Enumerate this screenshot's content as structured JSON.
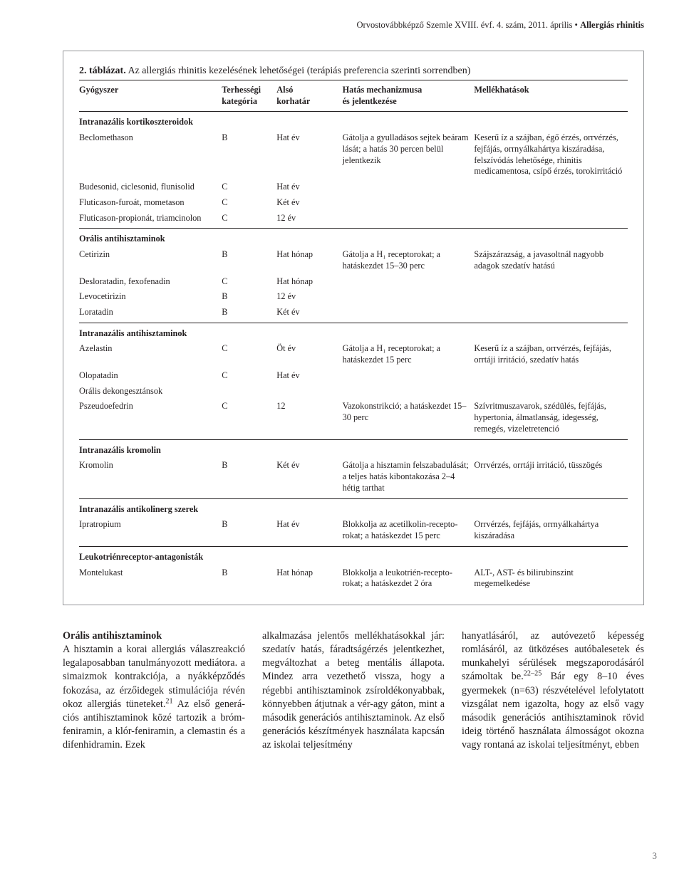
{
  "running_head": {
    "journal": "Orvostovábbképző Szemle XVIII. évf. 4. szám, 2011. április • ",
    "section": "Allergiás rhinitis"
  },
  "table": {
    "caption_label": "2. táblázat.",
    "caption_text": " Az allergiás rhinitis kezelésének lehetőségei (terápiás preferencia szerinti sorrendben)",
    "headers": {
      "drug": "Gyógyszer",
      "cat1": "Terhességi",
      "cat2": "kategória",
      "age1": "Alsó",
      "age2": "korhatár",
      "mech1": "Hatás mechanizmusa",
      "mech2": "és jelentkezése",
      "side": "Mellékhatások"
    },
    "groups": [
      {
        "title": "Intranazális kortikoszteroidok",
        "rows": [
          {
            "drug": "Beclomethason",
            "cat": "B",
            "age": "Hat év",
            "mech": "Gátolja a gyulladásos sejtek beáram lását; a hatás 30 per­cen belül jelentkezik",
            "side": "Keserű íz a szájban, égő érzés, orrvérzés, fejfájás, orrnyálkahártya kiszáradása, felszí­vódás lehetősége, rhinitis medicamentosa, csípő érzés, torokirritáció"
          },
          {
            "drug": "Budesonid, ciclesonid, flunisolid",
            "cat": "C",
            "age": "Hat év",
            "mech": "",
            "side": ""
          },
          {
            "drug": "Fluticason-furoát, mometason",
            "cat": "C",
            "age": "Két év",
            "mech": "",
            "side": ""
          },
          {
            "drug": "Fluticason-propionát, triamcinolon",
            "cat": "C",
            "age": "12 év",
            "mech": "",
            "side": ""
          }
        ]
      },
      {
        "title": "Orális antihisztaminok",
        "rows": [
          {
            "drug": "Cetirizin",
            "cat": "B",
            "age": "Hat hónap",
            "mech": "Gátolja a H₁ receptorokat; a hatáskezdet 15–30 perc",
            "side": "Szájszárazság, a javasoltnál nagyobb adagok szedatív hatású"
          },
          {
            "drug": "Desloratadin, fexofenadin",
            "cat": "C",
            "age": "Hat hónap",
            "mech": "",
            "side": ""
          },
          {
            "drug": "Levocetirizin",
            "cat": "B",
            "age": "12 év",
            "mech": "",
            "side": ""
          },
          {
            "drug": "Loratadin",
            "cat": "B",
            "age": "Két év",
            "mech": "",
            "side": ""
          }
        ]
      },
      {
        "title": "Intranazális antihisztaminok",
        "rows": [
          {
            "drug": "Azelastin",
            "cat": "C",
            "age": "Öt év",
            "mech": "Gátolja a H₁ receptorokat; a hatáskezdet 15 perc",
            "side": "Keserű íz a szájban, orrvérzés, fejfájás, orrtáji irritáció, szedatív hatás"
          },
          {
            "drug": "Olopatadin",
            "cat": "C",
            "age": "Hat év",
            "mech": "",
            "side": ""
          },
          {
            "drug": "Orális dekongesztánsok",
            "cat": "",
            "age": "",
            "mech": "",
            "side": ""
          },
          {
            "drug": "Pszeudoefedrin",
            "cat": "C",
            "age": "12",
            "mech": "Vazokonstrikció; a hatáskezdet 15–30 perc",
            "side": "Szívritmuszavarok, szédülés, fejfájás, hyper­tonia, álmatlanság, idegesség, remegés, vizeletretenció"
          }
        ]
      },
      {
        "title": "Intranazális kromolin",
        "rows": [
          {
            "drug": "Kromolin",
            "cat": "B",
            "age": "Két év",
            "mech": "Gátolja a hisztamin felszabadu­lását; a teljes hatás kibonta­kozása 2–4 hétig tarthat",
            "side": "Orrvérzés, orrtáji irritáció, tüsszögés"
          }
        ]
      },
      {
        "title": "Intranazális antikolinerg szerek",
        "rows": [
          {
            "drug": "Ipratropium",
            "cat": "B",
            "age": "Hat év",
            "mech": "Blokkolja az acetilkolin-recepto­rokat; a hatáskezdet 15 perc",
            "side": "Orrvérzés, fejfájás, orrnyálkahártya kiszáradása"
          }
        ]
      },
      {
        "title": "Leukotriénreceptor-antagonisták",
        "rows": [
          {
            "drug": "Montelukast",
            "cat": "B",
            "age": "Hat hónap",
            "mech": "Blokkolja a leukotrién-recepto­rokat; a hatáskezdet 2 óra",
            "side": "ALT-, AST- és bilirubinszint megemelkedése"
          }
        ]
      }
    ]
  },
  "body": {
    "subhead": "Orális antihisztaminok",
    "col1_a": "A hisztamin a korai allergiás válasz­reakció legalaposabban tanulmányo­zott mediátora. a simaizmok kont­rakciója, a nyákképződés fokozása, az érzőidegek stimulációja révén okoz allergiás tüneteket.",
    "col1_sup": "21",
    "col1_b": " Az első generá­ciós antihisztaminok közé tartozik a bróm-feniramin, a klór-feniramin, a clemastin és a difenhidramin. Ezek",
    "col2": "alkalmazása jelentős mellékhatásokkal jár: szedatív hatás, fáradtságérzés je­lentkezhet, megváltozhat a beteg men­tális állapota. Mindez arra vezethető vissza, hogy a régebbi antihisztaminok zsíroldékonyabbak, könnyebben át­jutnak a vér-agy gáton, mint a máso­dik generációs antihisztaminok. Az első generációs készítmények hasz­nálata kapcsán az iskolai teljesítmény",
    "col3_a": "hanyatlásáról, az autóvezető képesség romlásáról, az ütközéses autóbalesetek és munkahelyi sérülések megszaporo­dásáról számoltak be.",
    "col3_sup": "22–25",
    "col3_b": " Bár egy 8–10 éves gyermekek (n=63) részvételé­vel lefolytatott vizsgálat nem igazolta, hogy az első vagy második generáci­ós antihisztaminok rövid ideig törté­nő használata álmosságot okozna vagy rontaná az iskolai teljesítményt, ebben"
  },
  "page_number": "3"
}
